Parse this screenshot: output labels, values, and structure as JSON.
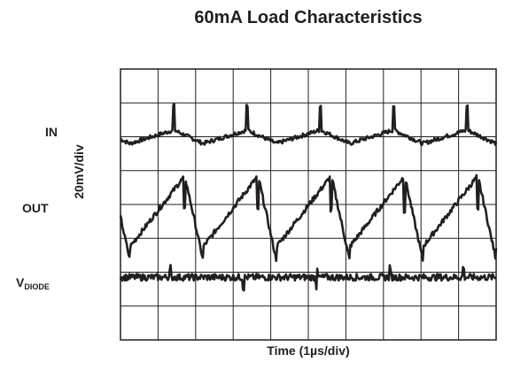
{
  "chart_data": {
    "type": "line",
    "title": "60mA Load Characteristics",
    "xlabel": "Time (1µs/div)",
    "ylabel": "20mV/div",
    "grid": true,
    "divisions": {
      "x": 10,
      "y": 8
    },
    "x_unit_per_div": "1µs",
    "y_unit_per_div": "20mV",
    "channels": [
      {
        "label": "IN",
        "label_sub": "",
        "ref_div": 2.0,
        "period_div": 1.95,
        "peak_div": 0.9,
        "ripple_div": 0.2
      },
      {
        "label": "OUT",
        "label_sub": "",
        "ref_div": 3.5,
        "period_div": 1.95,
        "peak_div": 2.1,
        "ripple_div": 0.8
      },
      {
        "label": "V",
        "label_sub": "DIODE",
        "ref_div": 6.15,
        "period_div": 1.95,
        "peak_div": 0.15,
        "ripple_div": 0.1
      }
    ]
  }
}
